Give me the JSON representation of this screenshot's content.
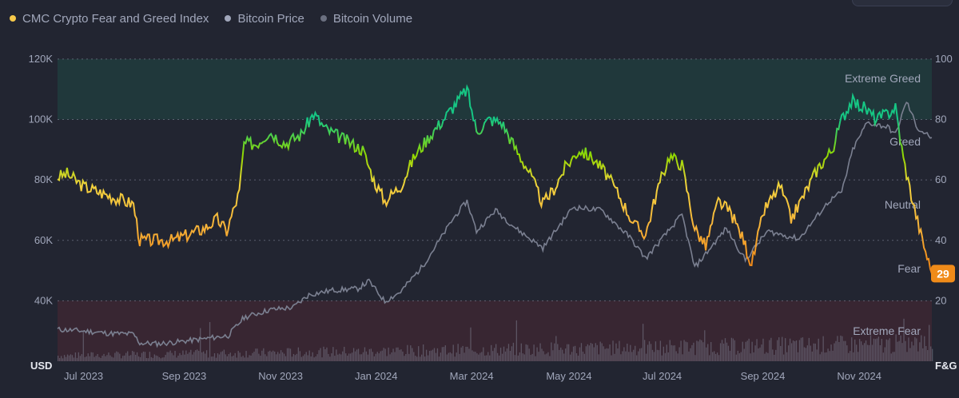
{
  "legend": {
    "items": [
      {
        "label": "CMC Crypto Fear and Greed Index",
        "color": "#f6c94a"
      },
      {
        "label": "Bitcoin Price",
        "color": "#a1a7bb"
      },
      {
        "label": "Bitcoin Volume",
        "color": "#6b7080"
      }
    ]
  },
  "chart_data": {
    "type": "line",
    "left_axis": {
      "unit": "USD",
      "ticks": [
        "120K",
        "100K",
        "80K",
        "60K",
        "40K"
      ],
      "tick_values": [
        120000,
        100000,
        80000,
        60000,
        40000
      ],
      "range": [
        20000,
        125000
      ]
    },
    "right_axis": {
      "unit": "F&G",
      "ticks": [
        "100",
        "80",
        "60",
        "40",
        "20"
      ],
      "tick_values": [
        100,
        80,
        60,
        40,
        20
      ],
      "range": [
        0,
        105
      ]
    },
    "x_axis": {
      "ticks": [
        "Jul 2023",
        "Sep 2023",
        "Nov 2023",
        "Jan 2024",
        "Mar 2024",
        "May 2024",
        "Jul 2024",
        "Sep 2024",
        "Nov 2024"
      ],
      "tick_dates": [
        "2023-07-01",
        "2023-09-01",
        "2023-11-01",
        "2024-01-01",
        "2024-03-01",
        "2024-05-01",
        "2024-07-01",
        "2024-09-01",
        "2024-11-01"
      ],
      "range": [
        "2023-06-29",
        "2025-01-02"
      ]
    },
    "zones": [
      {
        "label": "Extreme Greed",
        "from": 80,
        "to": 100,
        "color": "#16c784"
      },
      {
        "label": "Greed",
        "from": 60,
        "to": 80
      },
      {
        "label": "Neutral",
        "from": 40,
        "to": 60
      },
      {
        "label": "Fear",
        "from": 20,
        "to": 40
      },
      {
        "label": "Extreme Fear",
        "from": 0,
        "to": 20,
        "color": "#ea3943"
      }
    ],
    "current_value": "29",
    "series": [
      {
        "name": "CMC Crypto Fear and Greed Index",
        "axis": "right",
        "points": [
          [
            "2023-06-29",
            61
          ],
          [
            "2023-07-05",
            62
          ],
          [
            "2023-07-15",
            58
          ],
          [
            "2023-07-25",
            56
          ],
          [
            "2023-08-05",
            54
          ],
          [
            "2023-08-16",
            52
          ],
          [
            "2023-08-20",
            40
          ],
          [
            "2023-09-01",
            40
          ],
          [
            "2023-09-10",
            40
          ],
          [
            "2023-09-20",
            42
          ],
          [
            "2023-09-30",
            44
          ],
          [
            "2023-10-08",
            47
          ],
          [
            "2023-10-14",
            43
          ],
          [
            "2023-10-22",
            56
          ],
          [
            "2023-10-25",
            72
          ],
          [
            "2023-11-02",
            72
          ],
          [
            "2023-11-10",
            76
          ],
          [
            "2023-11-20",
            72
          ],
          [
            "2023-11-30",
            75
          ],
          [
            "2023-12-08",
            82
          ],
          [
            "2023-12-15",
            77
          ],
          [
            "2023-12-25",
            74
          ],
          [
            "2024-01-01",
            72
          ],
          [
            "2024-01-08",
            70
          ],
          [
            "2024-01-15",
            60
          ],
          [
            "2024-01-22",
            53
          ],
          [
            "2024-02-01",
            58
          ],
          [
            "2024-02-10",
            68
          ],
          [
            "2024-02-20",
            75
          ],
          [
            "2024-02-28",
            80
          ],
          [
            "2024-03-08",
            86
          ],
          [
            "2024-03-14",
            90
          ],
          [
            "2024-03-20",
            76
          ],
          [
            "2024-03-28",
            80
          ],
          [
            "2024-04-05",
            79
          ],
          [
            "2024-04-14",
            70
          ],
          [
            "2024-04-22",
            63
          ],
          [
            "2024-05-01",
            52
          ],
          [
            "2024-05-08",
            57
          ],
          [
            "2024-05-15",
            64
          ],
          [
            "2024-05-24",
            70
          ],
          [
            "2024-06-02",
            67
          ],
          [
            "2024-06-10",
            62
          ],
          [
            "2024-06-18",
            55
          ],
          [
            "2024-06-28",
            45
          ],
          [
            "2024-07-05",
            42
          ],
          [
            "2024-07-12",
            56
          ],
          [
            "2024-07-20",
            68
          ],
          [
            "2024-07-28",
            65
          ],
          [
            "2024-08-05",
            44
          ],
          [
            "2024-08-12",
            38
          ],
          [
            "2024-08-20",
            53
          ],
          [
            "2024-08-28",
            49
          ],
          [
            "2024-09-05",
            40
          ],
          [
            "2024-09-10",
            32
          ],
          [
            "2024-09-18",
            50
          ],
          [
            "2024-09-28",
            58
          ],
          [
            "2024-10-05",
            47
          ],
          [
            "2024-10-15",
            57
          ],
          [
            "2024-10-22",
            64
          ],
          [
            "2024-10-31",
            70
          ],
          [
            "2024-11-06",
            80
          ],
          [
            "2024-11-12",
            86
          ],
          [
            "2024-11-20",
            84
          ],
          [
            "2024-11-28",
            80
          ],
          [
            "2024-12-05",
            82
          ],
          [
            "2024-12-10",
            84
          ],
          [
            "2024-12-15",
            67
          ],
          [
            "2024-12-20",
            55
          ],
          [
            "2024-12-26",
            42
          ],
          [
            "2025-01-02",
            29
          ]
        ]
      },
      {
        "name": "Bitcoin Price",
        "axis": "left",
        "points": [
          [
            "2023-06-29",
            30500
          ],
          [
            "2023-07-10",
            30200
          ],
          [
            "2023-07-20",
            29800
          ],
          [
            "2023-08-01",
            29200
          ],
          [
            "2023-08-16",
            29000
          ],
          [
            "2023-08-20",
            26000
          ],
          [
            "2023-09-01",
            25800
          ],
          [
            "2023-09-15",
            26500
          ],
          [
            "2023-10-01",
            27500
          ],
          [
            "2023-10-15",
            28500
          ],
          [
            "2023-10-25",
            34500
          ],
          [
            "2023-11-10",
            37000
          ],
          [
            "2023-11-25",
            37800
          ],
          [
            "2023-12-05",
            42000
          ],
          [
            "2023-12-20",
            43500
          ],
          [
            "2024-01-05",
            44000
          ],
          [
            "2024-01-12",
            46500
          ],
          [
            "2024-01-22",
            39800
          ],
          [
            "2024-02-01",
            43000
          ],
          [
            "2024-02-15",
            51500
          ],
          [
            "2024-02-28",
            62000
          ],
          [
            "2024-03-05",
            67000
          ],
          [
            "2024-03-14",
            73000
          ],
          [
            "2024-03-20",
            63000
          ],
          [
            "2024-04-01",
            70000
          ],
          [
            "2024-04-15",
            63500
          ],
          [
            "2024-05-01",
            57500
          ],
          [
            "2024-05-20",
            71000
          ],
          [
            "2024-06-07",
            70000
          ],
          [
            "2024-06-25",
            61000
          ],
          [
            "2024-07-05",
            54000
          ],
          [
            "2024-07-28",
            68500
          ],
          [
            "2024-08-05",
            51000
          ],
          [
            "2024-08-25",
            64000
          ],
          [
            "2024-09-06",
            53500
          ],
          [
            "2024-09-20",
            63000
          ],
          [
            "2024-10-10",
            60500
          ],
          [
            "2024-10-29",
            73000
          ],
          [
            "2024-11-06",
            76000
          ],
          [
            "2024-11-13",
            90000
          ],
          [
            "2024-11-22",
            99000
          ],
          [
            "2024-12-05",
            97500
          ],
          [
            "2024-12-10",
            95000
          ],
          [
            "2024-12-17",
            106000
          ],
          [
            "2024-12-24",
            97000
          ],
          [
            "2025-01-02",
            94000
          ]
        ]
      },
      {
        "name": "Bitcoin Volume",
        "type": "bar",
        "note_scale": "unlabeled"
      }
    ]
  }
}
